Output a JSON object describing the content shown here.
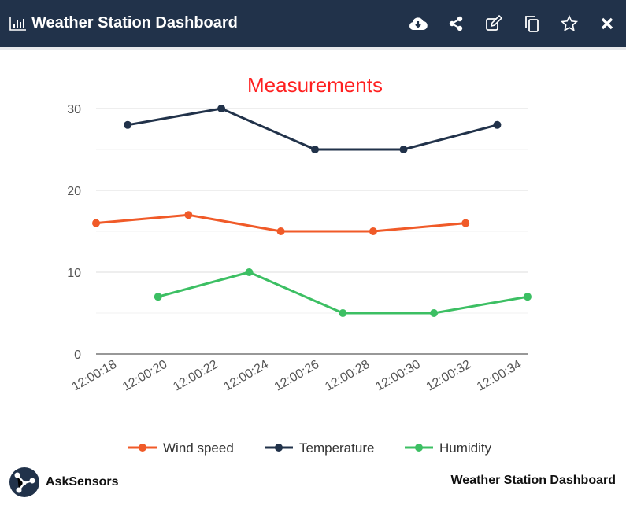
{
  "header": {
    "title": "Weather Station Dashboard",
    "icons": [
      "bar-chart-icon",
      "cloud-download-icon",
      "share-icon",
      "edit-icon",
      "copy-icon",
      "star-icon",
      "close-icon"
    ]
  },
  "footer": {
    "brand": "AskSensors",
    "title": "Weather Station Dashboard"
  },
  "chart_data": {
    "type": "line",
    "title": "Measurements",
    "xlabel": "",
    "ylabel": "",
    "ylim": [
      0,
      30
    ],
    "yticks": [
      0,
      10,
      20,
      30
    ],
    "xticks": [
      "12:00:18",
      "12:00:20",
      "12:00:22",
      "12:00:24",
      "12:00:26",
      "12:00:28",
      "12:00:30",
      "12:00:32",
      "12:00:34"
    ],
    "xlim": [
      "12:00:17.25",
      "12:00:34.3"
    ],
    "grid": true,
    "legend": "bottom",
    "series": [
      {
        "name": "Wind speed",
        "color": "#f05a28",
        "x": [
          "12:00:17.25",
          "12:00:20.9",
          "12:00:24.55",
          "12:00:28.2",
          "12:00:31.85"
        ],
        "values": [
          16,
          17,
          15,
          15,
          16
        ]
      },
      {
        "name": "Temperature",
        "color": "#21324a",
        "x": [
          "12:00:18.5",
          "12:00:22.2",
          "12:00:25.9",
          "12:00:29.4",
          "12:00:33.1"
        ],
        "values": [
          28,
          30,
          25,
          25,
          28
        ]
      },
      {
        "name": "Humidity",
        "color": "#3cbf63",
        "x": [
          "12:00:19.7",
          "12:00:23.3",
          "12:00:27.0",
          "12:00:30.6",
          "12:00:34.3"
        ],
        "values": [
          7,
          10,
          5,
          5,
          7
        ]
      }
    ]
  },
  "colors": {
    "header": "#21324a",
    "title": "#ff2020"
  }
}
